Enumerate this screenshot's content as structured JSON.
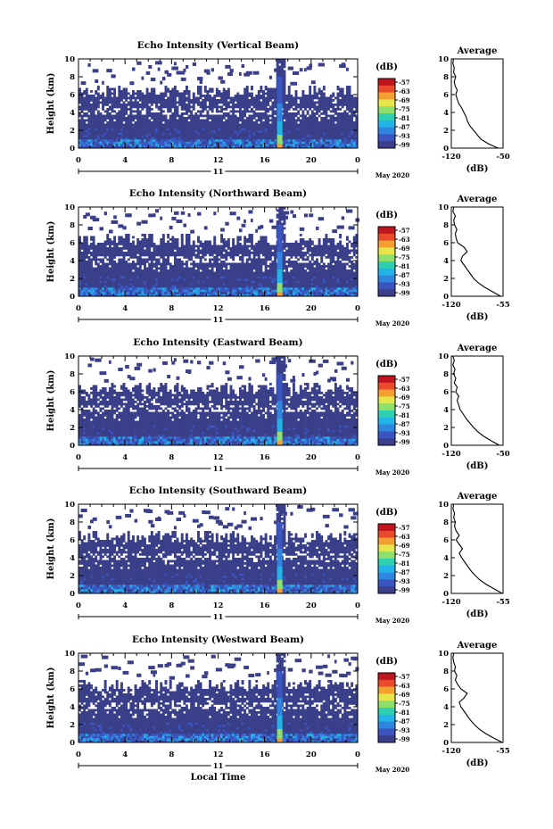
{
  "chart_data": [
    {
      "type": "heatmap",
      "title": "Echo Intensity (Vertical Beam)",
      "ylabel": "Height (km)",
      "xlabel": "",
      "x_ticks": [
        "0",
        "4",
        "8",
        "12",
        "16",
        "20",
        "0"
      ],
      "y_ticks": [
        "0",
        "2",
        "4",
        "6",
        "8",
        "10"
      ],
      "xlim": [
        0,
        24
      ],
      "ylim": [
        0,
        10
      ],
      "day_label": "11",
      "month_label": "May 2020",
      "colorbar": {
        "unit": "(dB)",
        "labels": [
          "-57",
          "-63",
          "-69",
          "-75",
          "-81",
          "-87",
          "-93",
          "-99"
        ]
      },
      "average": {
        "title": "Average",
        "xlabel": "(dB)",
        "x_ticks": [
          "-120",
          "-50"
        ],
        "y_ticks": [
          "0",
          "2",
          "4",
          "6",
          "8",
          "10"
        ],
        "profile": [
          [
            0,
            -57
          ],
          [
            0.5,
            -70
          ],
          [
            1,
            -80
          ],
          [
            1.5,
            -85
          ],
          [
            2,
            -90
          ],
          [
            2.5,
            -95
          ],
          [
            3,
            -98
          ],
          [
            3.5,
            -100
          ],
          [
            4,
            -103
          ],
          [
            4.5,
            -106
          ],
          [
            5,
            -110
          ],
          [
            5.5,
            -112
          ],
          [
            6,
            -114
          ],
          [
            6.5,
            -112
          ],
          [
            7,
            -115
          ],
          [
            7.5,
            -116
          ],
          [
            8,
            -114
          ],
          [
            8.5,
            -117
          ],
          [
            9,
            -116
          ],
          [
            9.5,
            -118
          ],
          [
            10,
            -117
          ]
        ]
      }
    },
    {
      "type": "heatmap",
      "title": "Echo Intensity (Northward Beam)",
      "ylabel": "Height (km)",
      "xlabel": "",
      "x_ticks": [
        "0",
        "4",
        "8",
        "12",
        "16",
        "20",
        "0"
      ],
      "y_ticks": [
        "0",
        "2",
        "4",
        "6",
        "8",
        "10"
      ],
      "xlim": [
        0,
        24
      ],
      "ylim": [
        0,
        10
      ],
      "day_label": "11",
      "month_label": "May 2020",
      "colorbar": {
        "unit": "(dB)",
        "labels": [
          "-57",
          "-63",
          "-69",
          "-75",
          "-81",
          "-87",
          "-93",
          "-99"
        ]
      },
      "average": {
        "title": "Average",
        "xlabel": "(dB)",
        "x_ticks": [
          "-120",
          "-55"
        ],
        "y_ticks": [
          "0",
          "2",
          "4",
          "6",
          "8",
          "10"
        ],
        "profile": [
          [
            0,
            -58
          ],
          [
            0.5,
            -68
          ],
          [
            1,
            -78
          ],
          [
            1.5,
            -86
          ],
          [
            2,
            -92
          ],
          [
            2.5,
            -96
          ],
          [
            3,
            -100
          ],
          [
            3.5,
            -104
          ],
          [
            4,
            -108
          ],
          [
            4.5,
            -106
          ],
          [
            5,
            -100
          ],
          [
            5.5,
            -104
          ],
          [
            6,
            -112
          ],
          [
            6.5,
            -114
          ],
          [
            7,
            -115
          ],
          [
            7.5,
            -113
          ],
          [
            8,
            -116
          ],
          [
            8.5,
            -117
          ],
          [
            9,
            -115
          ],
          [
            9.5,
            -118
          ],
          [
            10,
            -117
          ]
        ]
      }
    },
    {
      "type": "heatmap",
      "title": "Echo Intensity (Eastward Beam)",
      "ylabel": "Height (km)",
      "xlabel": "",
      "x_ticks": [
        "0",
        "4",
        "8",
        "12",
        "16",
        "20",
        "0"
      ],
      "y_ticks": [
        "0",
        "2",
        "4",
        "6",
        "8",
        "10"
      ],
      "xlim": [
        0,
        24
      ],
      "ylim": [
        0,
        10
      ],
      "day_label": "11",
      "month_label": "May 2020",
      "colorbar": {
        "unit": "(dB)",
        "labels": [
          "-57",
          "-63",
          "-69",
          "-75",
          "-81",
          "-87",
          "-93",
          "-99"
        ]
      },
      "average": {
        "title": "Average",
        "xlabel": "(dB)",
        "x_ticks": [
          "-120",
          "-50"
        ],
        "y_ticks": [
          "0",
          "2",
          "4",
          "6",
          "8",
          "10"
        ],
        "profile": [
          [
            0,
            -55
          ],
          [
            0.5,
            -66
          ],
          [
            1,
            -76
          ],
          [
            1.5,
            -84
          ],
          [
            2,
            -90
          ],
          [
            2.5,
            -95
          ],
          [
            3,
            -100
          ],
          [
            3.5,
            -104
          ],
          [
            4,
            -108
          ],
          [
            4.5,
            -110
          ],
          [
            5,
            -112
          ],
          [
            5.5,
            -110
          ],
          [
            6,
            -114
          ],
          [
            6.5,
            -112
          ],
          [
            7,
            -116
          ],
          [
            7.5,
            -114
          ],
          [
            8,
            -117
          ],
          [
            8.5,
            -115
          ],
          [
            9,
            -118
          ],
          [
            9.5,
            -116
          ],
          [
            10,
            -118
          ]
        ]
      }
    },
    {
      "type": "heatmap",
      "title": "Echo Intensity (Southward Beam)",
      "ylabel": "Height (km)",
      "xlabel": "",
      "x_ticks": [
        "0",
        "4",
        "8",
        "12",
        "16",
        "20",
        "0"
      ],
      "y_ticks": [
        "0",
        "2",
        "4",
        "6",
        "8",
        "10"
      ],
      "xlim": [
        0,
        24
      ],
      "ylim": [
        0,
        10
      ],
      "day_label": "11",
      "month_label": "May 2020",
      "colorbar": {
        "unit": "(dB)",
        "labels": [
          "-57",
          "-63",
          "-69",
          "-75",
          "-81",
          "-87",
          "-93",
          "-99"
        ]
      },
      "average": {
        "title": "Average",
        "xlabel": "(dB)",
        "x_ticks": [
          "-120",
          "-55"
        ],
        "y_ticks": [
          "0",
          "2",
          "4",
          "6",
          "8",
          "10"
        ],
        "profile": [
          [
            0,
            -56
          ],
          [
            0.5,
            -66
          ],
          [
            1,
            -76
          ],
          [
            1.5,
            -84
          ],
          [
            2,
            -90
          ],
          [
            2.5,
            -95
          ],
          [
            3,
            -99
          ],
          [
            3.5,
            -103
          ],
          [
            4,
            -107
          ],
          [
            4.5,
            -110
          ],
          [
            5,
            -106
          ],
          [
            5.5,
            -110
          ],
          [
            6,
            -114
          ],
          [
            6.5,
            -110
          ],
          [
            7,
            -114
          ],
          [
            7.5,
            -116
          ],
          [
            8,
            -115
          ],
          [
            8.5,
            -117
          ],
          [
            9,
            -116
          ],
          [
            9.5,
            -118
          ],
          [
            10,
            -117
          ]
        ]
      }
    },
    {
      "type": "heatmap",
      "title": "Echo Intensity (Westward Beam)",
      "ylabel": "Height (km)",
      "xlabel": "Local Time",
      "x_ticks": [
        "0",
        "4",
        "8",
        "12",
        "16",
        "20",
        "0"
      ],
      "y_ticks": [
        "0",
        "2",
        "4",
        "6",
        "8",
        "10"
      ],
      "xlim": [
        0,
        24
      ],
      "ylim": [
        0,
        10
      ],
      "day_label": "11",
      "month_label": "May 2020",
      "colorbar": {
        "unit": "(dB)",
        "labels": [
          "-57",
          "-63",
          "-69",
          "-75",
          "-81",
          "-87",
          "-93",
          "-99"
        ]
      },
      "average": {
        "title": "Average",
        "xlabel": "(dB)",
        "x_ticks": [
          "-120",
          "-55"
        ],
        "y_ticks": [
          "0",
          "2",
          "4",
          "6",
          "8",
          "10"
        ],
        "profile": [
          [
            0,
            -56
          ],
          [
            0.5,
            -67
          ],
          [
            1,
            -77
          ],
          [
            1.5,
            -85
          ],
          [
            2,
            -91
          ],
          [
            2.5,
            -96
          ],
          [
            3,
            -100
          ],
          [
            3.5,
            -104
          ],
          [
            4,
            -108
          ],
          [
            4.5,
            -110
          ],
          [
            5,
            -104
          ],
          [
            5.5,
            -100
          ],
          [
            6,
            -108
          ],
          [
            6.5,
            -112
          ],
          [
            7,
            -115
          ],
          [
            7.5,
            -113
          ],
          [
            8,
            -116
          ],
          [
            8.5,
            -115
          ],
          [
            9,
            -117
          ],
          [
            9.5,
            -118
          ],
          [
            10,
            -117
          ]
        ]
      }
    }
  ],
  "colors": {
    "background_echo": "#3a3f8a",
    "colormap": [
      "#3b3f8c",
      "#3a55c0",
      "#2f86e0",
      "#22b4e6",
      "#2fd0b0",
      "#8fe06a",
      "#e6e64a",
      "#f4a030",
      "#e84a2a",
      "#c0141e"
    ]
  }
}
